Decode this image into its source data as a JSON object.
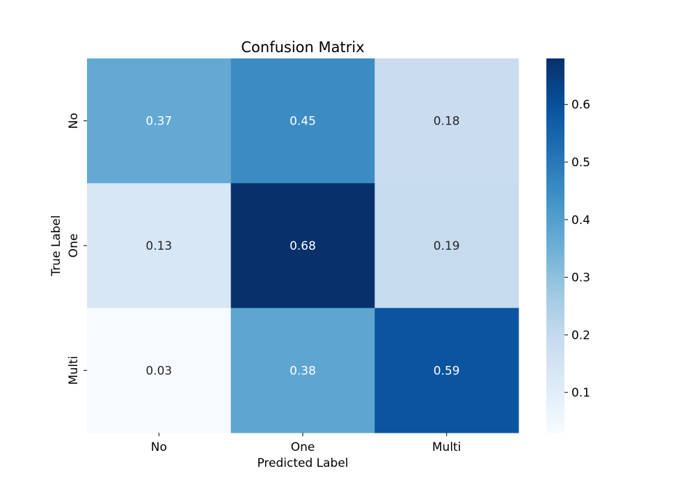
{
  "chart_data": {
    "type": "heatmap",
    "title": "Confusion Matrix",
    "xlabel": "Predicted Label",
    "ylabel": "True Label",
    "x_categories": [
      "No",
      "One",
      "Multi"
    ],
    "y_categories": [
      "No",
      "One",
      "Multi"
    ],
    "values": [
      [
        0.37,
        0.45,
        0.18
      ],
      [
        0.13,
        0.68,
        0.19
      ],
      [
        0.03,
        0.38,
        0.59
      ]
    ],
    "value_labels": [
      [
        "0.37",
        "0.45",
        "0.18"
      ],
      [
        "0.13",
        "0.68",
        "0.19"
      ],
      [
        "0.03",
        "0.38",
        "0.59"
      ]
    ],
    "colormap": "Blues",
    "colorbar": {
      "range": [
        0.03,
        0.68
      ],
      "ticks": [
        0.1,
        0.2,
        0.3,
        0.4,
        0.5,
        0.6
      ],
      "tick_labels": [
        "0.1",
        "0.2",
        "0.3",
        "0.4",
        "0.5",
        "0.6"
      ]
    },
    "text_colors": {
      "light": "#ffffff",
      "dark": "#262626"
    },
    "grid": false
  }
}
